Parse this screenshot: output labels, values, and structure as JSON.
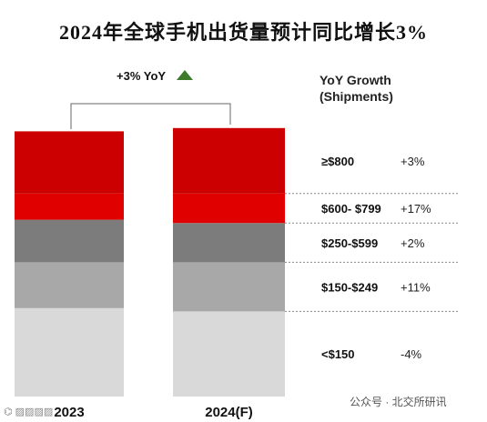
{
  "title": "2024年全球手机出货量预计同比增长3%",
  "header": {
    "yoy_total": "+3% YoY",
    "growth_title_line1": "YoY Growth",
    "growth_title_line2": "(Shipments)"
  },
  "colors": {
    "s800": "#cc0000",
    "s600": "#e00000",
    "s250": "#7c7c7c",
    "s150": "#a8a8a8",
    "sUnder150": "#d9d9d9",
    "arrow": "#3d7a2a",
    "negative": "#e53935"
  },
  "chart_data": {
    "type": "bar",
    "stacked": true,
    "categories": [
      "2023",
      "2024(F)"
    ],
    "series": [
      {
        "name": "<$150",
        "values": [
          27,
          26
        ],
        "yoy_growth": "-4%"
      },
      {
        "name": "$150-$249",
        "values": [
          14,
          15
        ],
        "yoy_growth": "+11%"
      },
      {
        "name": "$250-$599",
        "values": [
          13,
          12
        ],
        "yoy_growth": "+2%"
      },
      {
        "name": "$600- $799",
        "values": [
          8,
          9
        ],
        "yoy_growth": "+17%"
      },
      {
        "name": "≥$800",
        "values": [
          19,
          20
        ],
        "yoy_growth": "+3%"
      }
    ],
    "annotation": "+3% YoY",
    "legend_title": "YoY Growth (Shipments)"
  },
  "watermark": {
    "right": "公众号 · 北交所研讯"
  }
}
